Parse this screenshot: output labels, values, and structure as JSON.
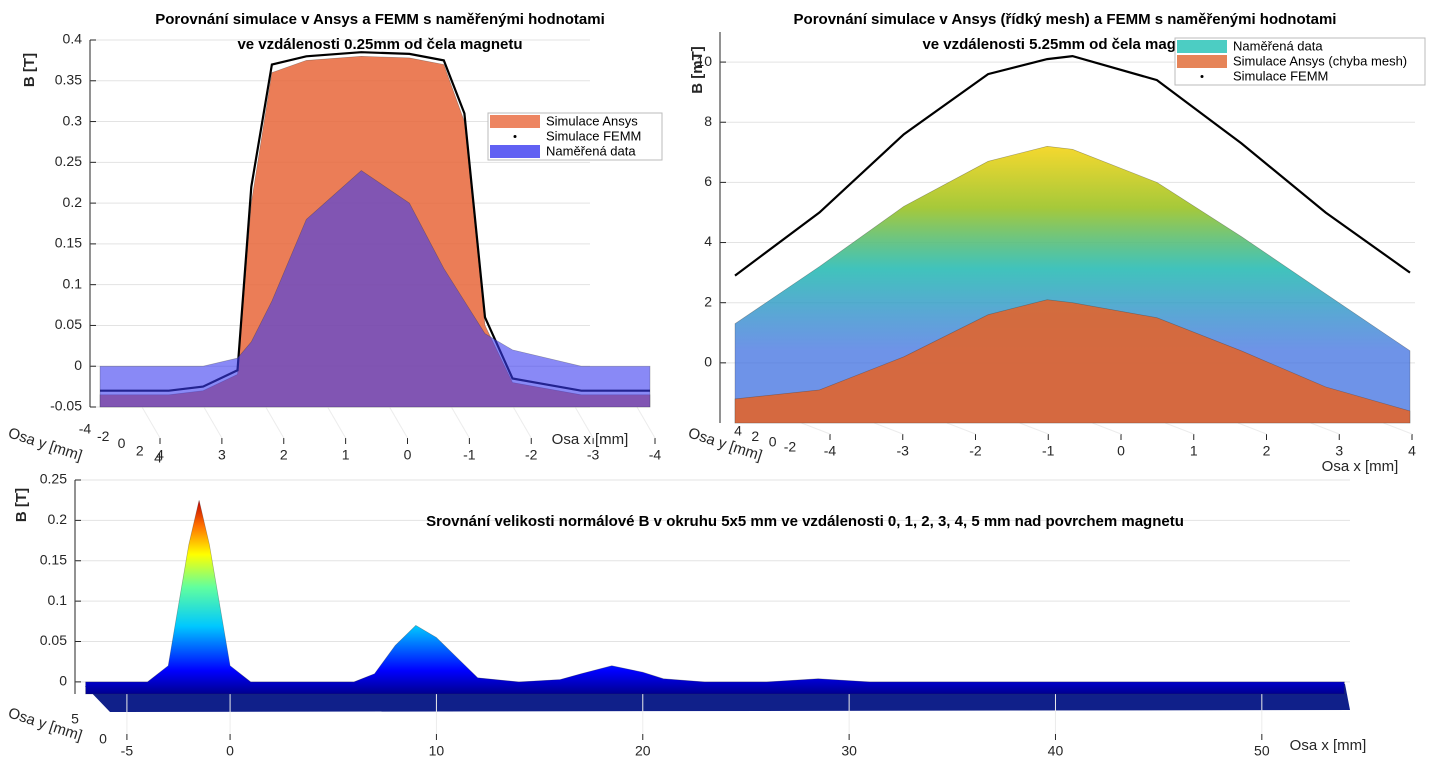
{
  "chart_data": [
    {
      "type": "surface3d",
      "title": [
        "Porovnání simulace v Ansys a FEMM s naměřenými hodnotami",
        "ve vzdálenosti 0.25mm od čela magnetu"
      ],
      "zlabel": "B [T]",
      "xlabel": "Osa x [mm]",
      "ylabel": "Osa y [mm]",
      "x": [
        4,
        3,
        2.5,
        2,
        1.8,
        1.5,
        1,
        0.2,
        -0.5,
        -1,
        -1.3,
        -1.6,
        -2,
        -3,
        -4
      ],
      "xlim": [
        4,
        -4
      ],
      "xticks": [
        4,
        3,
        2,
        1,
        0,
        -1,
        -2,
        -3,
        -4
      ],
      "ylim": [
        -4,
        4
      ],
      "yticks": [
        -4,
        -2,
        0,
        2,
        4
      ],
      "zlim": [
        -0.05,
        0.4
      ],
      "zticks": [
        -0.05,
        0,
        0.05,
        0.1,
        0.15,
        0.2,
        0.25,
        0.3,
        0.35,
        0.4
      ],
      "grid": true,
      "legend": "northeast",
      "series": [
        {
          "name": "Simulace Ansys",
          "style": "surface",
          "color": "#e8663a",
          "values": [
            -0.035,
            -0.035,
            -0.03,
            -0.01,
            0.2,
            0.36,
            0.375,
            0.38,
            0.378,
            0.37,
            0.3,
            0.05,
            -0.02,
            -0.035,
            -0.035
          ]
        },
        {
          "name": "Simulace FEMM",
          "style": "line",
          "color": "#000000",
          "values": [
            -0.03,
            -0.03,
            -0.025,
            -0.005,
            0.22,
            0.37,
            0.38,
            0.385,
            0.383,
            0.375,
            0.31,
            0.06,
            -0.015,
            -0.03,
            -0.03
          ]
        },
        {
          "name": "Naměřená data",
          "style": "surface",
          "color": "#3a3af0",
          "values": [
            0,
            0,
            0,
            0.01,
            0.03,
            0.08,
            0.18,
            0.24,
            0.2,
            0.12,
            0.08,
            0.04,
            0.02,
            0,
            0
          ]
        }
      ]
    },
    {
      "type": "surface3d",
      "title": [
        "Porovnání simulace v Ansys (řídký mesh) a FEMM s naměřenými hodnotami",
        "ve vzdálenosti 5.25mm od čela magnetu"
      ],
      "zlabel": "B [mT]",
      "xlabel": "Osa x [mm]",
      "ylabel": "Osa y [mm]",
      "x": [
        -4,
        -3,
        -2,
        -1,
        -0.3,
        0,
        1,
        2,
        3,
        4
      ],
      "xlim": [
        -4,
        4
      ],
      "xticks": [
        -4,
        -3,
        -2,
        -1,
        0,
        1,
        2,
        3,
        4
      ],
      "ylim": [
        4,
        -2
      ],
      "yticks": [
        4,
        2,
        0,
        -2
      ],
      "zlim": [
        -2,
        11
      ],
      "zticks": [
        0,
        2,
        4,
        6,
        8,
        10
      ],
      "grid": true,
      "legend": "northeast",
      "series": [
        {
          "name": "Naměřená data",
          "style": "surface",
          "color": "#1fc0b4",
          "colormap": "parula",
          "values": [
            1.3,
            3.2,
            5.2,
            6.7,
            7.2,
            7.1,
            6.0,
            4.2,
            2.3,
            0.4
          ]
        },
        {
          "name": "Simulace Ansys (chyba mesh)",
          "style": "surface",
          "color": "#e0652e",
          "values": [
            -1.2,
            -0.9,
            0.2,
            1.6,
            2.1,
            2.0,
            1.5,
            0.4,
            -0.8,
            -1.6
          ]
        },
        {
          "name": "Simulace FEMM",
          "style": "line",
          "color": "#000000",
          "values": [
            2.9,
            5.0,
            7.6,
            9.6,
            10.1,
            10.2,
            9.4,
            7.3,
            5.0,
            3.0
          ]
        }
      ]
    },
    {
      "type": "surface3d",
      "title": "Srovnání velikosti normálové B v okruhu 5x5 mm ve vzdálenosti 0, 1, 2, 3, 4, 5 mm nad povrchem magnetu",
      "zlabel": "B [T]",
      "xlabel": "Osa x [mm]",
      "ylabel": "Osa y [mm]",
      "x": [
        -7,
        -4,
        -3,
        -2,
        -1.5,
        -1,
        0,
        1,
        4,
        6,
        7,
        8,
        9,
        10,
        11,
        12,
        14,
        16,
        17,
        18.5,
        20,
        21,
        23,
        26,
        28.5,
        31,
        35,
        45,
        54
      ],
      "xlim": [
        -8,
        55
      ],
      "xticks": [
        -5,
        0,
        10,
        20,
        30,
        40,
        50
      ],
      "ylim": [
        5,
        0
      ],
      "yticks": [
        5,
        0
      ],
      "zlim": [
        -0.015,
        0.25
      ],
      "zticks": [
        0,
        0.05,
        0.1,
        0.15,
        0.2,
        0.25
      ],
      "grid": true,
      "series": [
        {
          "style": "surface",
          "color": "#0000c8",
          "colormap": "jet",
          "values": [
            0,
            0,
            0.02,
            0.17,
            0.225,
            0.17,
            0.02,
            0,
            0,
            0,
            0.01,
            0.045,
            0.07,
            0.055,
            0.03,
            0.005,
            0,
            0.003,
            0.01,
            0.02,
            0.012,
            0.004,
            0,
            0,
            0.004,
            0,
            0,
            0,
            0
          ]
        }
      ]
    }
  ]
}
